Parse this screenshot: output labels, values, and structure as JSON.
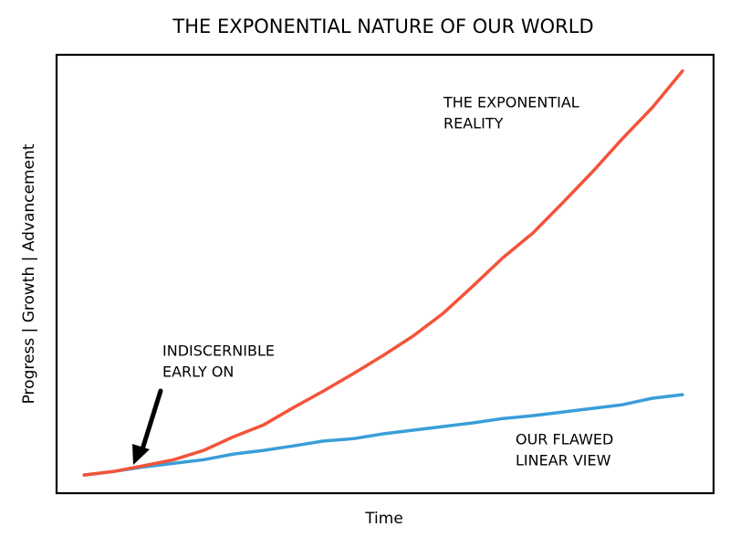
{
  "chart_data": {
    "type": "line",
    "title": "THE EXPONENTIAL NATURE OF OUR WORLD",
    "x_label": "Time",
    "y_label": "Progress | Growth | Advancement",
    "x": [
      0,
      0.5,
      1,
      1.5,
      2,
      2.5,
      3,
      3.5,
      4,
      4.5,
      5,
      5.5,
      6,
      6.5,
      7,
      7.5,
      8,
      8.5,
      9,
      9.5,
      10
    ],
    "series": [
      {
        "color": "#3a9ed8",
        "values": [
          0,
          0.9,
          2.0,
          2.9,
          3.8,
          5.2,
          6.1,
          7.2,
          8.4,
          9.0,
          10.2,
          11.1,
          12.0,
          12.9,
          14.0,
          14.7,
          15.6,
          16.5,
          17.4,
          19.0,
          19.9
        ]
      },
      {
        "color": "#f4533a",
        "values": [
          0,
          0.9,
          2.3,
          3.8,
          6.1,
          9.5,
          12.4,
          16.7,
          20.8,
          25.1,
          29.6,
          34.4,
          40.0,
          46.8,
          53.8,
          59.9,
          67.4,
          75.1,
          83.3,
          91.0,
          100
        ]
      }
    ],
    "xlim": [
      -0.46,
      10.52
    ],
    "ylim": [
      -4.5,
      104
    ],
    "annotations": [
      {
        "lines": [
          "THE EXPONENTIAL",
          "REALITY"
        ]
      },
      {
        "lines": [
          "INDISCERNIBLE",
          "EARLY ON"
        ]
      },
      {
        "lines": [
          "OUR FLAWED",
          "LINEAR VIEW"
        ]
      }
    ]
  }
}
